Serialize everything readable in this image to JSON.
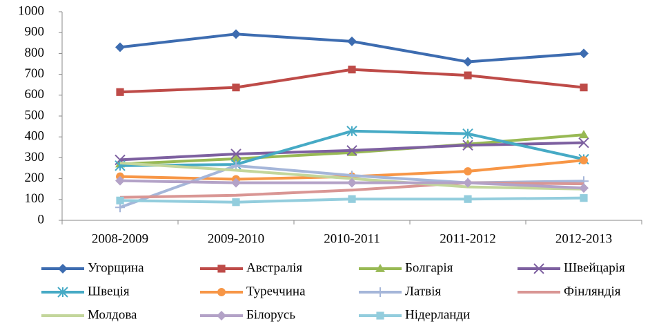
{
  "chart_data": {
    "type": "line",
    "categories": [
      "2008-2009",
      "2009-2010",
      "2010-2011",
      "2011-2012",
      "2012-2013"
    ],
    "ylim": [
      0,
      1000
    ],
    "yticks": [
      0,
      100,
      200,
      300,
      400,
      500,
      600,
      700,
      800,
      900,
      1000
    ],
    "grid": false,
    "legend": "bottom",
    "series": [
      {
        "name": "Угорщина",
        "color": "#3d6cb0",
        "marker": "diamond",
        "values": [
          830,
          893,
          858,
          760,
          800
        ]
      },
      {
        "name": "Австралія",
        "color": "#be4b48",
        "marker": "square",
        "values": [
          615,
          637,
          723,
          695,
          637
        ]
      },
      {
        "name": "Болгарія",
        "color": "#98b954",
        "marker": "triangle",
        "values": [
          270,
          295,
          325,
          365,
          410
        ]
      },
      {
        "name": "Швейцарія",
        "color": "#7d60a0",
        "marker": "x",
        "values": [
          290,
          318,
          335,
          360,
          372
        ]
      },
      {
        "name": "Швеція",
        "color": "#46aac5",
        "marker": "star",
        "values": [
          262,
          268,
          428,
          415,
          293
        ]
      },
      {
        "name": "Туреччина",
        "color": "#f79646",
        "marker": "circle",
        "values": [
          210,
          197,
          210,
          235,
          288
        ]
      },
      {
        "name": "Латвія",
        "color": "#a5b6d9",
        "marker": "plus",
        "values": [
          62,
          262,
          215,
          180,
          188
        ]
      },
      {
        "name": "Фінляндія",
        "color": "#d99694",
        "marker": "none",
        "values": [
          110,
          120,
          145,
          180,
          175
        ]
      },
      {
        "name": "Молдова",
        "color": "#c3d69b",
        "marker": "none",
        "values": [
          275,
          240,
          200,
          160,
          150
        ]
      },
      {
        "name": "Білорусь",
        "color": "#b3a2c7",
        "marker": "diamond",
        "values": [
          190,
          180,
          180,
          180,
          155
        ]
      },
      {
        "name": "Нідерланди",
        "color": "#93cddd",
        "marker": "square",
        "values": [
          95,
          87,
          102,
          102,
          107
        ]
      }
    ]
  }
}
